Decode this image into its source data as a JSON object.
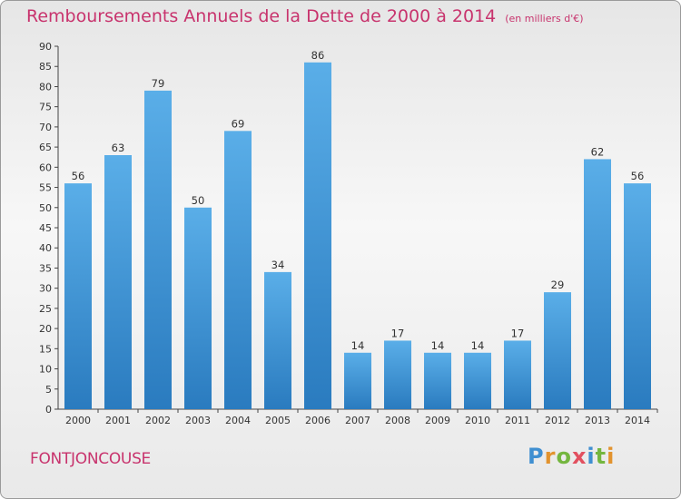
{
  "chart_data": {
    "type": "bar",
    "title": "Remboursements Annuels de la Dette de 2000 à 2014",
    "subtitle": "(en milliers d'€)",
    "xlabel": "",
    "ylabel": "",
    "categories": [
      "2000",
      "2001",
      "2002",
      "2003",
      "2004",
      "2005",
      "2006",
      "2007",
      "2008",
      "2009",
      "2010",
      "2011",
      "2012",
      "2013",
      "2014"
    ],
    "values": [
      56,
      63,
      79,
      50,
      69,
      34,
      86,
      14,
      17,
      14,
      14,
      17,
      29,
      62,
      56
    ],
    "ylim": [
      0,
      90
    ],
    "ytick_step": 5,
    "grid": false,
    "colors": {
      "bar_top": "#5aaee8",
      "bar_bottom": "#2a7bbf",
      "title": "#c8336d"
    }
  },
  "footer": {
    "commune": "FONTJONCOUSE",
    "brand_letters": [
      "P",
      "r",
      "o",
      "x",
      "i",
      "t",
      "i"
    ]
  }
}
